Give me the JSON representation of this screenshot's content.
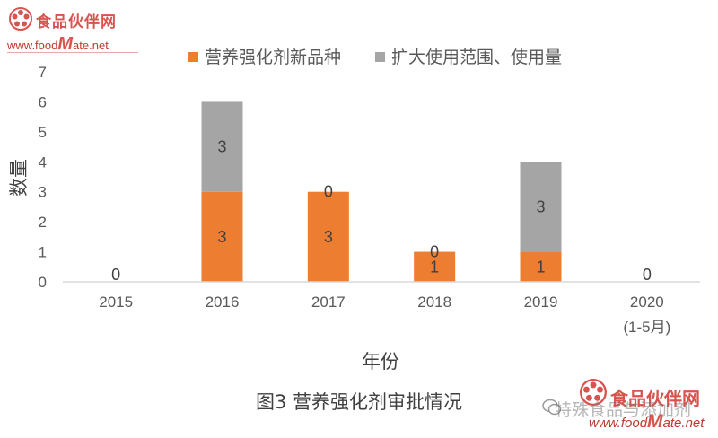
{
  "logo": {
    "name_cn": "食品伙伴网",
    "url_prefix": "www.food",
    "url_big": "M",
    "url_suffix": "ate.net"
  },
  "watermark": {
    "name_cn": "食品伙伴网",
    "url_prefix": "www.food",
    "url_big": "M",
    "url_suffix": "ate.net",
    "overlay_text": "特殊食品与添加剂"
  },
  "caption": "图3 营养强化剂审批情况",
  "colors": {
    "series1": "#ed7d31",
    "series2": "#a5a5a5",
    "axis": "#d9d9d9",
    "text": "#595959"
  },
  "chart_data": {
    "type": "bar",
    "stacked": true,
    "categories": [
      "2015",
      "2016",
      "2017",
      "2018",
      "2019",
      "2020"
    ],
    "category_sublabels": [
      "",
      "",
      "",
      "",
      "",
      "(1-5月)"
    ],
    "series": [
      {
        "name": "营养强化剂新品种",
        "values": [
          0,
          3,
          3,
          1,
          1,
          0
        ],
        "labels": [
          "0",
          "3",
          "3",
          "1",
          "1",
          "0"
        ]
      },
      {
        "name": "扩大使用范围、使用量",
        "values": [
          0,
          3,
          0,
          0,
          3,
          0
        ],
        "labels": [
          "",
          "3",
          "0",
          "0",
          "3",
          ""
        ]
      }
    ],
    "xlabel": "年份",
    "ylabel": "数量",
    "ylim": [
      0,
      7
    ],
    "yticks": [
      "0",
      "1",
      "2",
      "3",
      "4",
      "5",
      "6",
      "7"
    ],
    "legend_position": "top",
    "grid": false
  }
}
